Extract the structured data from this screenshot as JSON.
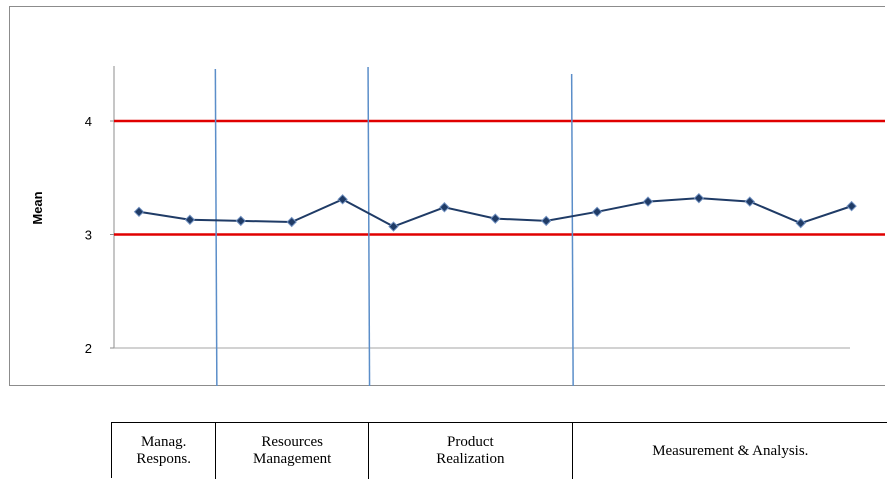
{
  "chart_data": {
    "type": "line",
    "ylabel": "Mean",
    "ylim": [
      1.9,
      4.6
    ],
    "yticks": [
      "2",
      "3",
      "4"
    ],
    "reference_lines": [
      {
        "value": 4,
        "color": "#e00000"
      },
      {
        "value": 3,
        "color": "#e00000"
      }
    ],
    "series": [
      {
        "values": [
          3.2,
          3.13,
          3.12,
          3.11,
          3.31,
          3.07,
          3.24,
          3.14,
          3.12,
          3.2,
          3.29,
          3.32,
          3.29,
          3.1,
          3.25
        ],
        "color": "#1f3b66"
      }
    ],
    "grid": false,
    "groups": [
      {
        "label": "Manag.\nRespons.",
        "count": 2
      },
      {
        "label": "Resources\nManagement",
        "count": 3
      },
      {
        "label": "Product\nRealization",
        "count": 4
      },
      {
        "label": "Measurement & Analysis.",
        "count": 6
      }
    ],
    "separator_color": "#5b8ec9"
  }
}
